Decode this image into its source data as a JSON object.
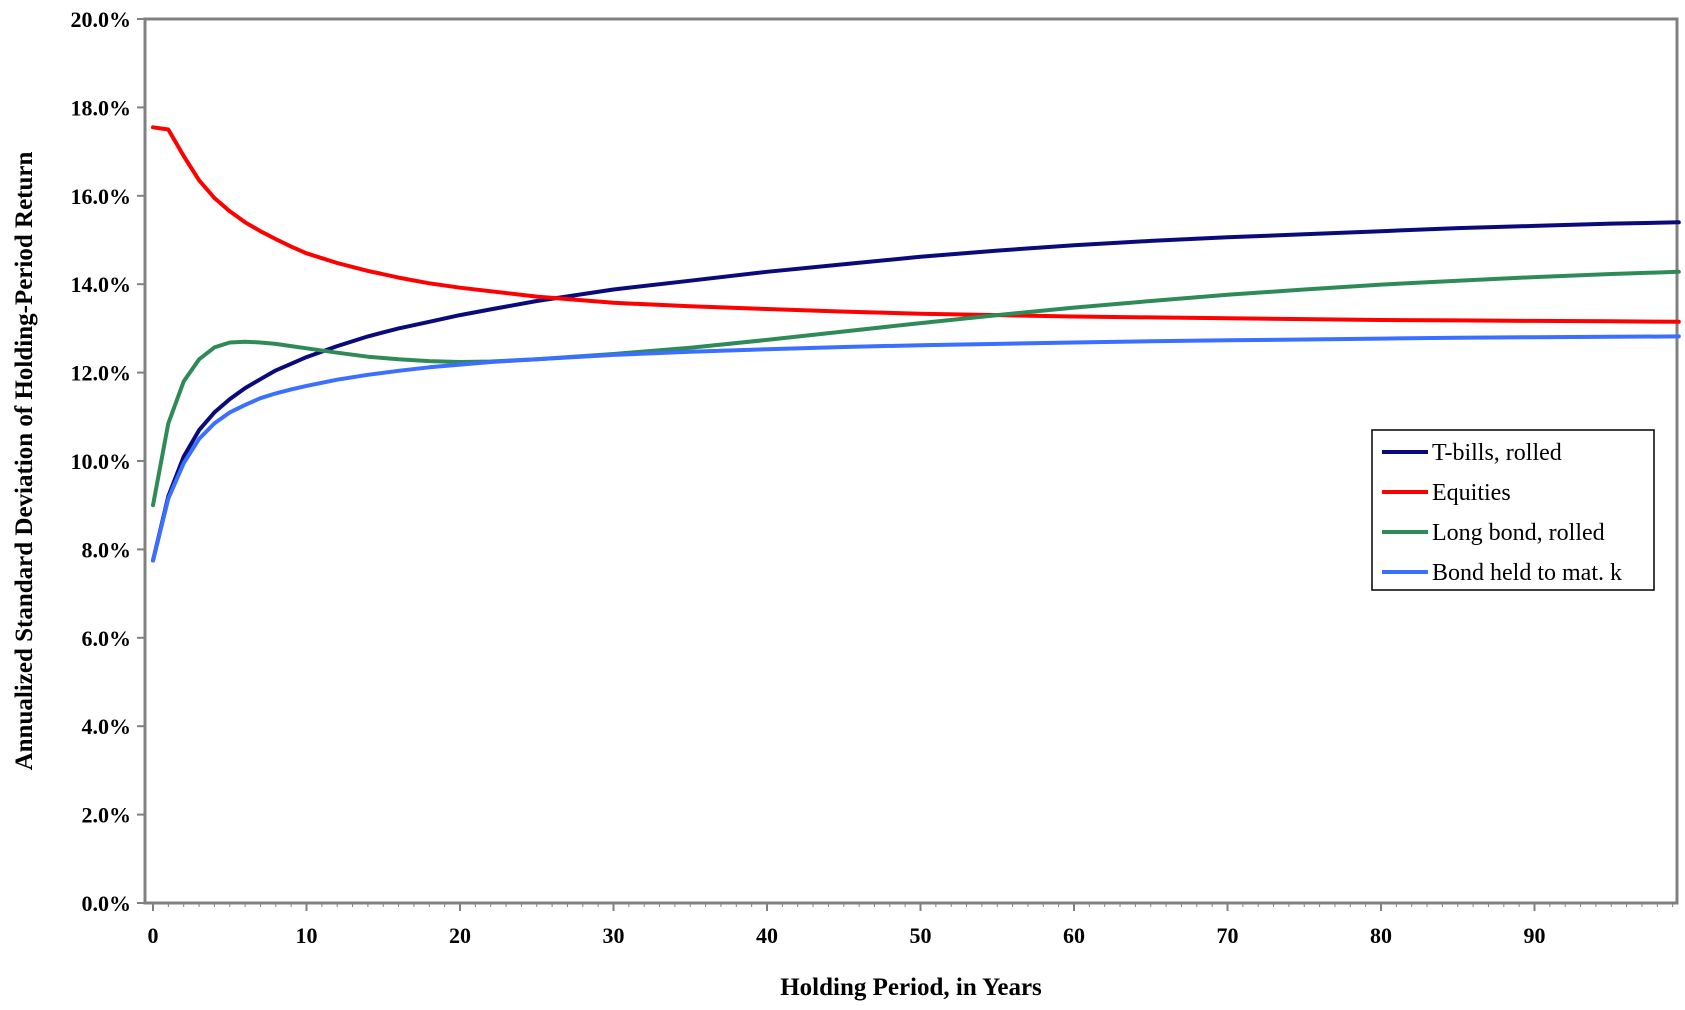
{
  "chart_data": {
    "type": "line",
    "title": "",
    "xlabel": "Holding Period, in Years",
    "ylabel": "Annualized Standard Deviation of Holding-Period Return",
    "xlim": [
      0,
      100
    ],
    "ylim": [
      0,
      20
    ],
    "x_ticks": [
      0,
      10,
      20,
      30,
      40,
      50,
      60,
      70,
      80,
      90
    ],
    "x_tick_labels": [
      "0",
      "10",
      "20",
      "30",
      "40",
      "50",
      "60",
      "70",
      "80",
      "90"
    ],
    "y_ticks": [
      0,
      2,
      4,
      6,
      8,
      10,
      12,
      14,
      16,
      18,
      20
    ],
    "y_tick_labels": [
      "0.0%",
      "2.0%",
      "4.0%",
      "6.0%",
      "8.0%",
      "10.0%",
      "12.0%",
      "14.0%",
      "16.0%",
      "18.0%",
      "20.0%"
    ],
    "grid": false,
    "legend_position": "right",
    "series": [
      {
        "name": "T-bills, rolled",
        "color": "#0a0a7a",
        "points": [
          [
            0,
            7.75
          ],
          [
            1,
            9.2
          ],
          [
            2,
            10.1
          ],
          [
            3,
            10.7
          ],
          [
            4,
            11.1
          ],
          [
            5,
            11.4
          ],
          [
            6,
            11.65
          ],
          [
            7,
            11.85
          ],
          [
            8,
            12.05
          ],
          [
            9,
            12.2
          ],
          [
            10,
            12.35
          ],
          [
            12,
            12.6
          ],
          [
            14,
            12.82
          ],
          [
            16,
            13.0
          ],
          [
            18,
            13.15
          ],
          [
            20,
            13.3
          ],
          [
            22,
            13.43
          ],
          [
            25,
            13.62
          ],
          [
            30,
            13.88
          ],
          [
            35,
            14.08
          ],
          [
            40,
            14.28
          ],
          [
            45,
            14.45
          ],
          [
            50,
            14.62
          ],
          [
            55,
            14.76
          ],
          [
            60,
            14.88
          ],
          [
            65,
            14.98
          ],
          [
            70,
            15.06
          ],
          [
            75,
            15.13
          ],
          [
            80,
            15.2
          ],
          [
            85,
            15.27
          ],
          [
            90,
            15.32
          ],
          [
            95,
            15.37
          ],
          [
            100,
            15.4
          ]
        ]
      },
      {
        "name": "Equities",
        "color": "#ff0000",
        "points": [
          [
            0,
            17.55
          ],
          [
            1,
            17.5
          ],
          [
            2,
            16.9
          ],
          [
            3,
            16.35
          ],
          [
            4,
            15.95
          ],
          [
            5,
            15.65
          ],
          [
            6,
            15.4
          ],
          [
            7,
            15.2
          ],
          [
            8,
            15.02
          ],
          [
            9,
            14.85
          ],
          [
            10,
            14.7
          ],
          [
            12,
            14.48
          ],
          [
            14,
            14.3
          ],
          [
            16,
            14.15
          ],
          [
            18,
            14.02
          ],
          [
            20,
            13.92
          ],
          [
            25,
            13.72
          ],
          [
            30,
            13.58
          ],
          [
            35,
            13.5
          ],
          [
            40,
            13.44
          ],
          [
            45,
            13.38
          ],
          [
            50,
            13.33
          ],
          [
            55,
            13.3
          ],
          [
            60,
            13.27
          ],
          [
            65,
            13.25
          ],
          [
            70,
            13.23
          ],
          [
            75,
            13.21
          ],
          [
            80,
            13.19
          ],
          [
            85,
            13.18
          ],
          [
            90,
            13.17
          ],
          [
            95,
            13.16
          ],
          [
            100,
            13.15
          ]
        ]
      },
      {
        "name": "Long bond, rolled",
        "color": "#2e8b57",
        "points": [
          [
            0,
            9.0
          ],
          [
            1,
            10.85
          ],
          [
            2,
            11.8
          ],
          [
            3,
            12.3
          ],
          [
            4,
            12.57
          ],
          [
            5,
            12.68
          ],
          [
            6,
            12.7
          ],
          [
            7,
            12.68
          ],
          [
            8,
            12.65
          ],
          [
            9,
            12.6
          ],
          [
            10,
            12.55
          ],
          [
            12,
            12.45
          ],
          [
            14,
            12.36
          ],
          [
            16,
            12.3
          ],
          [
            18,
            12.26
          ],
          [
            20,
            12.24
          ],
          [
            22,
            12.25
          ],
          [
            25,
            12.3
          ],
          [
            30,
            12.42
          ],
          [
            35,
            12.56
          ],
          [
            40,
            12.74
          ],
          [
            45,
            12.93
          ],
          [
            50,
            13.12
          ],
          [
            55,
            13.3
          ],
          [
            60,
            13.47
          ],
          [
            65,
            13.62
          ],
          [
            70,
            13.76
          ],
          [
            75,
            13.88
          ],
          [
            80,
            13.99
          ],
          [
            85,
            14.08
          ],
          [
            90,
            14.16
          ],
          [
            95,
            14.23
          ],
          [
            100,
            14.28
          ]
        ]
      },
      {
        "name": "Bond held to mat. k",
        "color": "#3a6fff",
        "points": [
          [
            0,
            7.75
          ],
          [
            1,
            9.15
          ],
          [
            2,
            9.95
          ],
          [
            3,
            10.5
          ],
          [
            4,
            10.85
          ],
          [
            5,
            11.1
          ],
          [
            6,
            11.27
          ],
          [
            7,
            11.42
          ],
          [
            8,
            11.53
          ],
          [
            9,
            11.62
          ],
          [
            10,
            11.7
          ],
          [
            12,
            11.84
          ],
          [
            14,
            11.95
          ],
          [
            16,
            12.04
          ],
          [
            18,
            12.12
          ],
          [
            20,
            12.18
          ],
          [
            22,
            12.24
          ],
          [
            25,
            12.3
          ],
          [
            30,
            12.4
          ],
          [
            35,
            12.47
          ],
          [
            40,
            12.53
          ],
          [
            45,
            12.58
          ],
          [
            50,
            12.62
          ],
          [
            55,
            12.65
          ],
          [
            60,
            12.68
          ],
          [
            65,
            12.71
          ],
          [
            70,
            12.73
          ],
          [
            75,
            12.75
          ],
          [
            80,
            12.77
          ],
          [
            85,
            12.79
          ],
          [
            90,
            12.8
          ],
          [
            95,
            12.81
          ],
          [
            100,
            12.82
          ]
        ]
      }
    ]
  }
}
